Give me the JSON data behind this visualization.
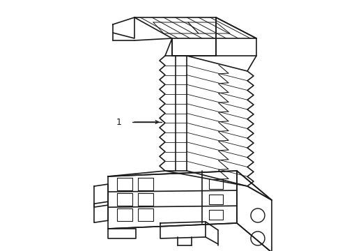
{
  "bg_color": "#ffffff",
  "line_color": "#1a1a1a",
  "line_width": 1.2,
  "fig_width": 4.89,
  "fig_height": 3.6,
  "dpi": 100
}
